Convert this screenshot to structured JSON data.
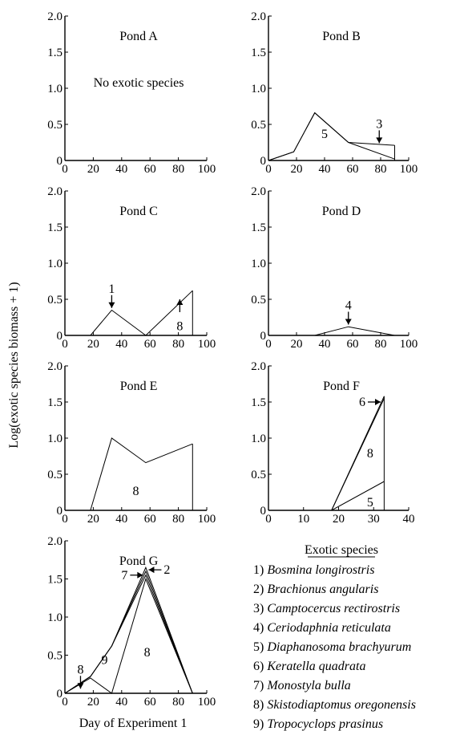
{
  "figure": {
    "ylabel": "Log(exotic species biomass + 1)",
    "xlabel": "Day of Experiment 1"
  },
  "legend": {
    "title": "Exotic species",
    "items": [
      {
        "num": "1)",
        "name": "Bosmina longirostris"
      },
      {
        "num": "2)",
        "name": "Brachionus angularis"
      },
      {
        "num": "3)",
        "name": "Camptocercus rectirostris"
      },
      {
        "num": "4)",
        "name": "Ceriodaphnia reticulata"
      },
      {
        "num": "5)",
        "name": "Diaphanosoma brachyurum"
      },
      {
        "num": "6)",
        "name": "Keratella quadrata"
      },
      {
        "num": "7)",
        "name": "Monostyla bulla"
      },
      {
        "num": "8)",
        "name": "Skistodiaptomus oregonensis"
      },
      {
        "num": "9)",
        "name": "Tropocyclops prasinus"
      }
    ]
  },
  "chart_data": [
    {
      "type": "line",
      "title": "Pond A",
      "xlim": [
        0,
        100
      ],
      "ylim": [
        0,
        2
      ],
      "xticks": [
        "0",
        "20",
        "40",
        "60",
        "80",
        "100"
      ],
      "yticks": [
        "0",
        "0.5",
        "1.0",
        "1.5",
        "2.0"
      ],
      "note": "No exotic species",
      "series": [],
      "labels": [],
      "arrows": []
    },
    {
      "type": "line",
      "title": "Pond B",
      "xlim": [
        0,
        100
      ],
      "ylim": [
        0,
        2
      ],
      "xticks": [
        "0",
        "20",
        "40",
        "60",
        "80",
        "100"
      ],
      "yticks": [
        "0",
        "0.5",
        "1.0",
        "1.5",
        "2.0"
      ],
      "series": [
        {
          "x": [
            0,
            18,
            33,
            57,
            90
          ],
          "y": [
            0,
            0.12,
            0.66,
            0.25,
            0.02
          ]
        },
        {
          "x": [
            0,
            18,
            33,
            57,
            90
          ],
          "y": [
            0,
            0.12,
            0.66,
            0.25,
            0.21
          ]
        }
      ],
      "verticals": [
        {
          "x": 90,
          "y0": 0,
          "y1": 0.21
        }
      ],
      "labels": [
        {
          "text": "5",
          "x": 40,
          "y": 0.38
        }
      ],
      "arrows": [
        {
          "label": "3",
          "dir": "down",
          "x": 79,
          "y": 0.24
        }
      ]
    },
    {
      "type": "line",
      "title": "Pond C",
      "xlim": [
        0,
        100
      ],
      "ylim": [
        0,
        2
      ],
      "xticks": [
        "0",
        "20",
        "40",
        "60",
        "80",
        "100"
      ],
      "yticks": [
        "0",
        "0.5",
        "1.0",
        "1.5",
        "2.0"
      ],
      "series": [
        {
          "x": [
            0,
            18,
            33,
            57,
            90
          ],
          "y": [
            0,
            0,
            0.35,
            0,
            0.62
          ]
        }
      ],
      "verticals": [
        {
          "x": 90,
          "y0": 0,
          "y1": 0.62
        }
      ],
      "labels": [
        {
          "text": "8",
          "x": 81,
          "y": 0.14
        }
      ],
      "arrows": [
        {
          "label": "1",
          "dir": "down",
          "x": 33,
          "y": 0.38
        },
        {
          "label": "",
          "dir": "up",
          "x": 81,
          "y": 0.5
        }
      ]
    },
    {
      "type": "line",
      "title": "Pond D",
      "xlim": [
        0,
        100
      ],
      "ylim": [
        0,
        2
      ],
      "xticks": [
        "0",
        "20",
        "40",
        "60",
        "80",
        "100"
      ],
      "yticks": [
        "0",
        "0.5",
        "1.0",
        "1.5",
        "2.0"
      ],
      "series": [
        {
          "x": [
            0,
            33,
            57,
            90
          ],
          "y": [
            0,
            0,
            0.12,
            0
          ]
        }
      ],
      "labels": [],
      "arrows": [
        {
          "label": "4",
          "dir": "down",
          "x": 57,
          "y": 0.15
        }
      ]
    },
    {
      "type": "line",
      "title": "Pond E",
      "xlim": [
        0,
        100
      ],
      "ylim": [
        0,
        2
      ],
      "xticks": [
        "0",
        "20",
        "40",
        "60",
        "80",
        "100"
      ],
      "yticks": [
        "0",
        "0.5",
        "1.0",
        "1.5",
        "2.0"
      ],
      "series": [
        {
          "x": [
            0,
            18,
            33,
            57,
            90
          ],
          "y": [
            0,
            0,
            1.0,
            0.66,
            0.92
          ]
        }
      ],
      "verticals": [
        {
          "x": 90,
          "y0": 0,
          "y1": 0.92
        }
      ],
      "labels": [
        {
          "text": "8",
          "x": 50,
          "y": 0.28
        }
      ],
      "arrows": []
    },
    {
      "type": "line",
      "title": "Pond F",
      "xlim": [
        0,
        40
      ],
      "ylim": [
        0,
        2
      ],
      "xticks": [
        "0",
        "10",
        "20",
        "30",
        "40"
      ],
      "yticks": [
        "0",
        "0.5",
        "1.0",
        "1.5",
        "2.0"
      ],
      "series": [
        {
          "x": [
            18,
            33
          ],
          "y": [
            0,
            0.4
          ]
        },
        {
          "x": [
            18,
            33
          ],
          "y": [
            0,
            1.55
          ]
        },
        {
          "x": [
            18,
            33
          ],
          "y": [
            0,
            1.58
          ]
        }
      ],
      "verticals": [
        {
          "x": 33,
          "y0": 0,
          "y1": 1.58
        }
      ],
      "labels": [
        {
          "text": "8",
          "x": 29,
          "y": 0.8
        },
        {
          "text": "5",
          "x": 29,
          "y": 0.12
        }
      ],
      "arrows": [
        {
          "label": "6",
          "dir": "right",
          "x": 32,
          "y": 1.5
        }
      ]
    },
    {
      "type": "line",
      "title": "Pond G",
      "xlim": [
        0,
        100
      ],
      "ylim": [
        0,
        2
      ],
      "xticks": [
        "0",
        "20",
        "40",
        "60",
        "80",
        "100"
      ],
      "yticks": [
        "0",
        "0.5",
        "1.0",
        "1.5",
        "2.0"
      ],
      "series": [
        {
          "x": [
            0,
            18,
            33,
            57,
            90
          ],
          "y": [
            0,
            0.2,
            0,
            1.5,
            0
          ]
        },
        {
          "x": [
            0,
            18,
            33,
            57,
            90
          ],
          "y": [
            0,
            0.22,
            0.62,
            1.55,
            0
          ]
        },
        {
          "x": [
            0,
            18,
            33,
            57,
            90
          ],
          "y": [
            0,
            0.22,
            0.62,
            1.6,
            0
          ]
        },
        {
          "x": [
            0,
            18,
            33,
            57,
            90
          ],
          "y": [
            0,
            0.22,
            0.62,
            1.65,
            0
          ]
        }
      ],
      "labels": [
        {
          "text": "9",
          "x": 28,
          "y": 0.45
        },
        {
          "text": "8",
          "x": 58,
          "y": 0.55
        }
      ],
      "arrows": [
        {
          "label": "8",
          "dir": "down",
          "x": 11,
          "y": 0.06
        },
        {
          "label": "7",
          "dir": "right",
          "x": 55,
          "y": 1.55
        },
        {
          "label": "2",
          "dir": "left",
          "x": 59,
          "y": 1.62
        }
      ]
    }
  ]
}
